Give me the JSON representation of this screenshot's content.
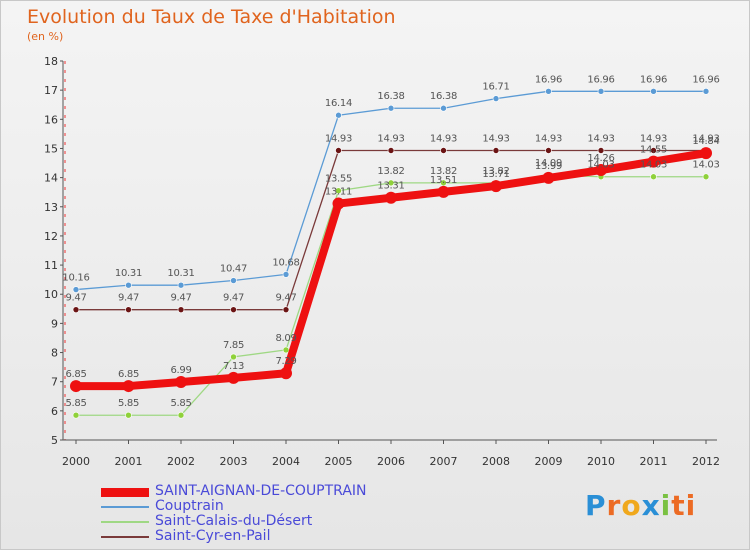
{
  "header": {
    "title": "Evolution du Taux de Taxe d'Habitation",
    "unit": "(en %)"
  },
  "logo": {
    "letters": [
      "P",
      "r",
      "o",
      "x",
      "i",
      "ti"
    ]
  },
  "chart_data": {
    "type": "line",
    "title": "Evolution du Taux de Taxe d'Habitation",
    "ylabel": "(en %)",
    "xlabel": "",
    "ylim": [
      5,
      18
    ],
    "yticks": [
      "5",
      "6",
      "7",
      "8",
      "9",
      "10",
      "11",
      "12",
      "13",
      "14",
      "15",
      "16",
      "17",
      "18"
    ],
    "x": [
      "2000",
      "2001",
      "2002",
      "2003",
      "2004",
      "2005",
      "2006",
      "2007",
      "2008",
      "2009",
      "2010",
      "2011",
      "2012"
    ],
    "grid": false,
    "legend_position": "bottom-left",
    "series": [
      {
        "name": "Couptrain",
        "color": "#5b9bd5",
        "marker_color": "#5b9bd5",
        "values": [
          10.16,
          10.31,
          10.31,
          10.47,
          10.68,
          16.14,
          16.38,
          16.38,
          16.71,
          16.96,
          16.96,
          16.96,
          16.96
        ],
        "labels": [
          "10.16",
          "10.31",
          "10.31",
          "10.47",
          "10.68",
          "16.14",
          "16.38",
          "16.38",
          "16.71",
          "16.96",
          "16.96",
          "16.96",
          "16.96"
        ]
      },
      {
        "name": "Saint-Cyr-en-Pail",
        "color": "#7a3a3a",
        "marker_color": "#6b1414",
        "values": [
          9.47,
          9.47,
          9.47,
          9.47,
          9.47,
          14.93,
          14.93,
          14.93,
          14.93,
          14.93,
          14.93,
          14.93,
          14.93
        ],
        "labels": [
          "9.47",
          "9.47",
          "9.47",
          "9.47",
          "9.47",
          "14.93",
          "14.93",
          "14.93",
          "14.93",
          "14.93",
          "14.93",
          "14.93",
          "14.93"
        ]
      },
      {
        "name": "Saint-Calais-du-Désert",
        "color": "#9fd884",
        "marker_color": "#8fd13a",
        "values": [
          5.85,
          5.85,
          5.85,
          7.85,
          8.09,
          13.55,
          13.82,
          13.82,
          13.82,
          14.09,
          14.03,
          14.03,
          14.03
        ],
        "labels": [
          "5.85",
          "5.85",
          "5.85",
          "7.85",
          "8.09",
          "13.55",
          "13.82",
          "13.82",
          "13.82",
          "14.09",
          "14.03",
          "14.03",
          "14.03"
        ]
      },
      {
        "name": "SAINT-AIGNAN-DE-COUPTRAIN",
        "color": "#ee1111",
        "marker_color": "#ee1111",
        "values": [
          6.85,
          6.85,
          6.99,
          7.13,
          7.29,
          13.11,
          13.31,
          13.51,
          13.71,
          13.99,
          14.26,
          14.55,
          14.84
        ],
        "labels": [
          "6.85",
          "6.85",
          "6.99",
          "7.13",
          "7.29",
          "13.11",
          "13.31",
          "13.51",
          "13.71",
          "13.99",
          "14.26",
          "14.55",
          "14.84"
        ]
      }
    ],
    "legend": [
      {
        "name": "SAINT-AIGNAN-DE-COUPTRAIN",
        "color": "#ee1111",
        "thick": true
      },
      {
        "name": "Couptrain",
        "color": "#5b9bd5",
        "thick": false
      },
      {
        "name": "Saint-Calais-du-Désert",
        "color": "#9fd884",
        "thick": false
      },
      {
        "name": "Saint-Cyr-en-Pail",
        "color": "#7a3a3a",
        "thick": false
      }
    ]
  }
}
